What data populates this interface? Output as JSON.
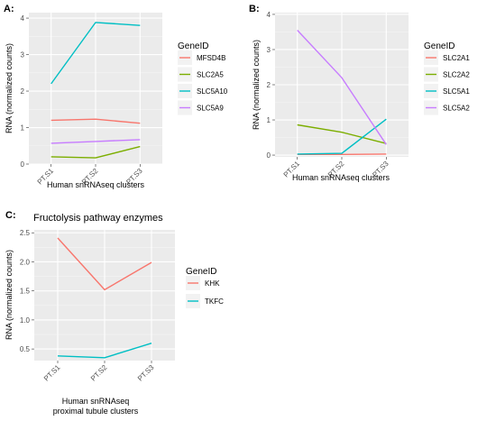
{
  "chart_data": [
    {
      "panel": "A:",
      "type": "line",
      "title": "",
      "categories": [
        "PT.S1",
        "PT.S2",
        "PT.S3"
      ],
      "xlabel": [
        "Human snRNAseq clusters"
      ],
      "ylabel": "RNA (normalized counts)",
      "ylim": [
        0,
        4.15
      ],
      "yticks": [
        0,
        1,
        2,
        3,
        4
      ],
      "grid": true,
      "legend_title": "GeneID",
      "legend_position": "right",
      "series": [
        {
          "name": "MFSD4B",
          "color": "#F8766D",
          "values": [
            1.2,
            1.23,
            1.12
          ]
        },
        {
          "name": "SLC2A5",
          "color": "#7CAE00",
          "values": [
            0.2,
            0.17,
            0.48
          ]
        },
        {
          "name": "SLC5A10",
          "color": "#00BFC4",
          "values": [
            2.2,
            3.88,
            3.8
          ]
        },
        {
          "name": "SLC5A9",
          "color": "#C77CFF",
          "values": [
            0.57,
            0.62,
            0.67
          ]
        }
      ]
    },
    {
      "panel": "B:",
      "type": "line",
      "title": "",
      "categories": [
        "PT.S1",
        "PT.S2",
        "PT.S3"
      ],
      "xlabel": [
        "Human snRNAseq clusters"
      ],
      "ylabel": "RNA (normalized counts)",
      "ylim": [
        -0.05,
        4.05
      ],
      "yticks": [
        0,
        1,
        2,
        3,
        4
      ],
      "grid": true,
      "legend_title": "GeneID",
      "legend_position": "right",
      "series": [
        {
          "name": "SLC2A1",
          "color": "#F8766D",
          "values": [
            0.02,
            0.02,
            0.03
          ]
        },
        {
          "name": "SLC2A2",
          "color": "#7CAE00",
          "values": [
            0.86,
            0.65,
            0.33
          ]
        },
        {
          "name": "SLC5A1",
          "color": "#00BFC4",
          "values": [
            0.03,
            0.05,
            1.02
          ]
        },
        {
          "name": "SLC5A2",
          "color": "#C77CFF",
          "values": [
            3.55,
            2.2,
            0.3
          ]
        }
      ]
    },
    {
      "panel": "C:",
      "type": "line",
      "title": "Fructolysis pathway enzymes",
      "categories": [
        "PT.S1",
        "PT.S2",
        "PT.S3"
      ],
      "xlabel": [
        "Human snRNAseq",
        "proximal tubule clusters"
      ],
      "ylabel": "RNA (normalized counts)",
      "ylim": [
        0.3,
        2.55
      ],
      "yticks": [
        0.5,
        1.0,
        1.5,
        2.0,
        2.5
      ],
      "ytick_labels": [
        "0.5",
        "1.0",
        "1.5",
        "2.0",
        "2.5"
      ],
      "grid": true,
      "legend_title": "GeneID",
      "legend_position": "right",
      "series": [
        {
          "name": "KHK",
          "color": "#F8766D",
          "values": [
            2.41,
            1.52,
            1.99
          ]
        },
        {
          "name": "TKFC",
          "color": "#00BFC4",
          "values": [
            0.38,
            0.35,
            0.6
          ]
        }
      ]
    }
  ]
}
